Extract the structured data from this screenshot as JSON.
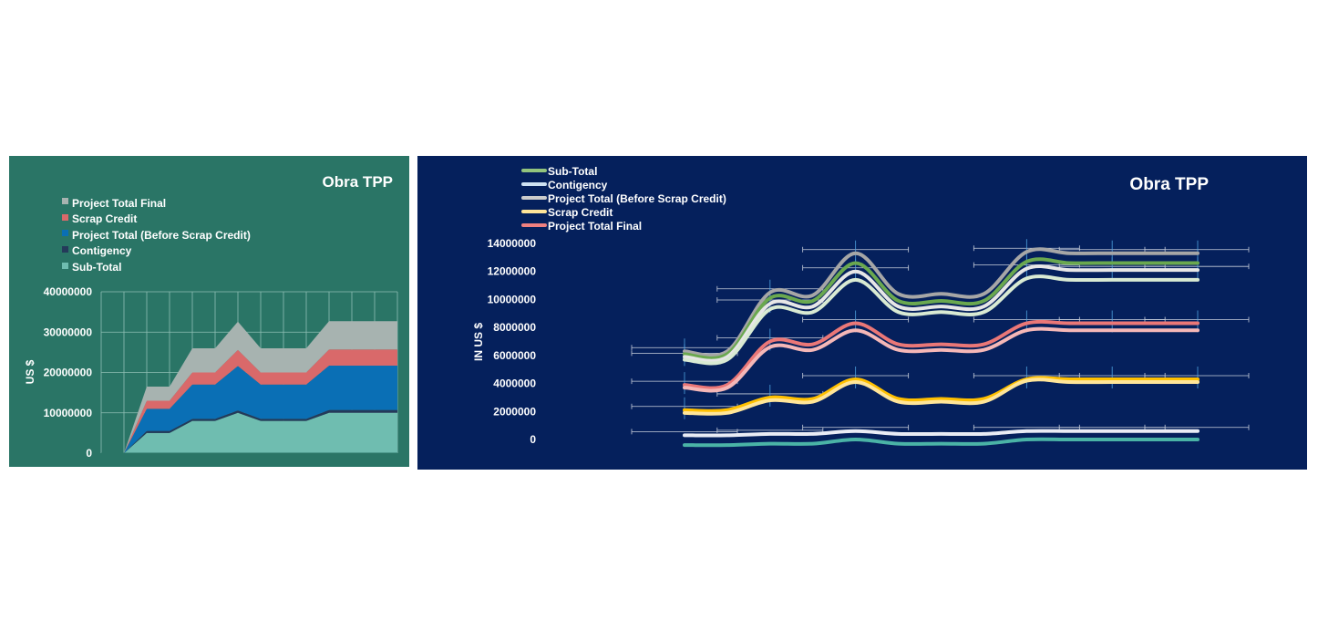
{
  "chart_data": [
    {
      "type": "area",
      "stacked": true,
      "title": "Obra TPP",
      "ylabel": "US $",
      "xlabel": "",
      "ylim": [
        0,
        40000000
      ],
      "yticks": [
        "0",
        "10000000",
        "20000000",
        "30000000",
        "40000000"
      ],
      "grid": true,
      "legend_position": "top-left",
      "x": [
        1,
        2,
        3,
        4,
        5,
        6,
        7,
        8,
        9,
        10,
        11,
        12,
        13,
        14
      ],
      "colors": {
        "Sub-Total": "#6fbdb0",
        "Contigency": "#243a5a",
        "Project Total (Before Scrap Credit)": "#0a6fb5",
        "Scrap Credit": "#d9696a",
        "Project Total Final": "#a7b3b0"
      },
      "legend": [
        "Project Total Final",
        "Scrap Credit",
        "Project Total (Before Scrap Credit)",
        "Contigency",
        "Sub-Total"
      ],
      "series": [
        {
          "name": "Sub-Total",
          "values": [
            0,
            0,
            5000000,
            5000000,
            8000000,
            8000000,
            10000000,
            8000000,
            8000000,
            8000000,
            10000000,
            10000000,
            10000000,
            10000000
          ]
        },
        {
          "name": "Contigency",
          "values": [
            0,
            0,
            500000,
            500000,
            500000,
            500000,
            600000,
            500000,
            500000,
            500000,
            700000,
            700000,
            700000,
            700000
          ]
        },
        {
          "name": "Project Total (Before Scrap Credit)",
          "values": [
            0,
            0,
            5500000,
            5500000,
            8500000,
            8500000,
            11000000,
            8500000,
            8500000,
            8500000,
            11000000,
            11000000,
            11000000,
            11000000
          ]
        },
        {
          "name": "Scrap Credit",
          "values": [
            0,
            0,
            2000000,
            2000000,
            3000000,
            3000000,
            4000000,
            3000000,
            3000000,
            3000000,
            4000000,
            4000000,
            4000000,
            4000000
          ]
        },
        {
          "name": "Project Total Final",
          "values": [
            0,
            0,
            3500000,
            3500000,
            6000000,
            6000000,
            7000000,
            6000000,
            6000000,
            6000000,
            7000000,
            7000000,
            7000000,
            7000000
          ]
        }
      ]
    },
    {
      "type": "line",
      "title": "Obra TPP",
      "ylabel": "IN US $",
      "xlabel": "",
      "ylim": [
        0,
        14000000
      ],
      "yticks": [
        "0",
        "2000000",
        "4000000",
        "6000000",
        "8000000",
        "10000000",
        "12000000",
        "14000000"
      ],
      "grid": false,
      "error_bars": true,
      "legend_position": "top-left",
      "x": [
        1,
        2,
        3,
        4,
        5,
        6,
        7,
        8,
        9,
        10,
        11,
        12,
        13
      ],
      "legend": [
        "Sub-Total",
        "Contigency",
        "Project Total (Before Scrap Credit)",
        "Scrap Credit",
        "Project Total Final"
      ],
      "series": [
        {
          "name": "Project Total (Before Scrap Credit)",
          "color": "#a6a6a6",
          "values": [
            6300000,
            6300000,
            10500000,
            10300000,
            13300000,
            10400000,
            10400000,
            10400000,
            13400000,
            13300000,
            13300000,
            13300000,
            13300000
          ]
        },
        {
          "name": "Sub-Total",
          "color": "#6aa84f",
          "values": [
            6100000,
            6100000,
            10100000,
            9900000,
            12600000,
            9900000,
            9900000,
            9900000,
            12700000,
            12600000,
            12600000,
            12600000,
            12600000
          ]
        },
        {
          "name": "Contigency",
          "color": "#e6e6e6",
          "values": [
            5900000,
            5900000,
            9700000,
            9500000,
            12000000,
            9500000,
            9500000,
            9500000,
            12200000,
            12100000,
            12100000,
            12100000,
            12100000
          ]
        },
        {
          "name": "Sub-Total",
          "color": "#d9ead3",
          "values": [
            5700000,
            5700000,
            9300000,
            9100000,
            11400000,
            9100000,
            9100000,
            9100000,
            11500000,
            11400000,
            11400000,
            11400000,
            11400000
          ]
        },
        {
          "name": "Project Total Final",
          "color": "#ea7777",
          "values": [
            3900000,
            3900000,
            7000000,
            6800000,
            8300000,
            6800000,
            6800000,
            6800000,
            8300000,
            8300000,
            8300000,
            8300000,
            8300000
          ]
        },
        {
          "name": "Project Total Final",
          "color": "#f5b7b7",
          "values": [
            3700000,
            3700000,
            6600000,
            6400000,
            7800000,
            6400000,
            6400000,
            6400000,
            7800000,
            7800000,
            7800000,
            7800000,
            7800000
          ]
        },
        {
          "name": "Scrap Credit",
          "color": "#ffc000",
          "values": [
            2100000,
            2100000,
            3000000,
            2900000,
            4300000,
            2900000,
            2900000,
            2900000,
            4300000,
            4300000,
            4300000,
            4300000,
            4300000
          ]
        },
        {
          "name": "Scrap Credit",
          "color": "#ffe599",
          "values": [
            1900000,
            1900000,
            2800000,
            2700000,
            4100000,
            2700000,
            2700000,
            2700000,
            4200000,
            4100000,
            4100000,
            4100000,
            4100000
          ]
        },
        {
          "name": "Contigency",
          "color": "#e9ecf5",
          "values": [
            300000,
            300000,
            400000,
            400000,
            600000,
            400000,
            400000,
            400000,
            600000,
            600000,
            600000,
            600000,
            600000
          ]
        },
        {
          "name": "Sub-Total",
          "color": "#4ab3a6",
          "values": [
            -400000,
            -400000,
            -300000,
            -300000,
            0,
            -300000,
            -300000,
            -300000,
            0,
            0,
            0,
            0,
            0
          ]
        }
      ]
    }
  ]
}
